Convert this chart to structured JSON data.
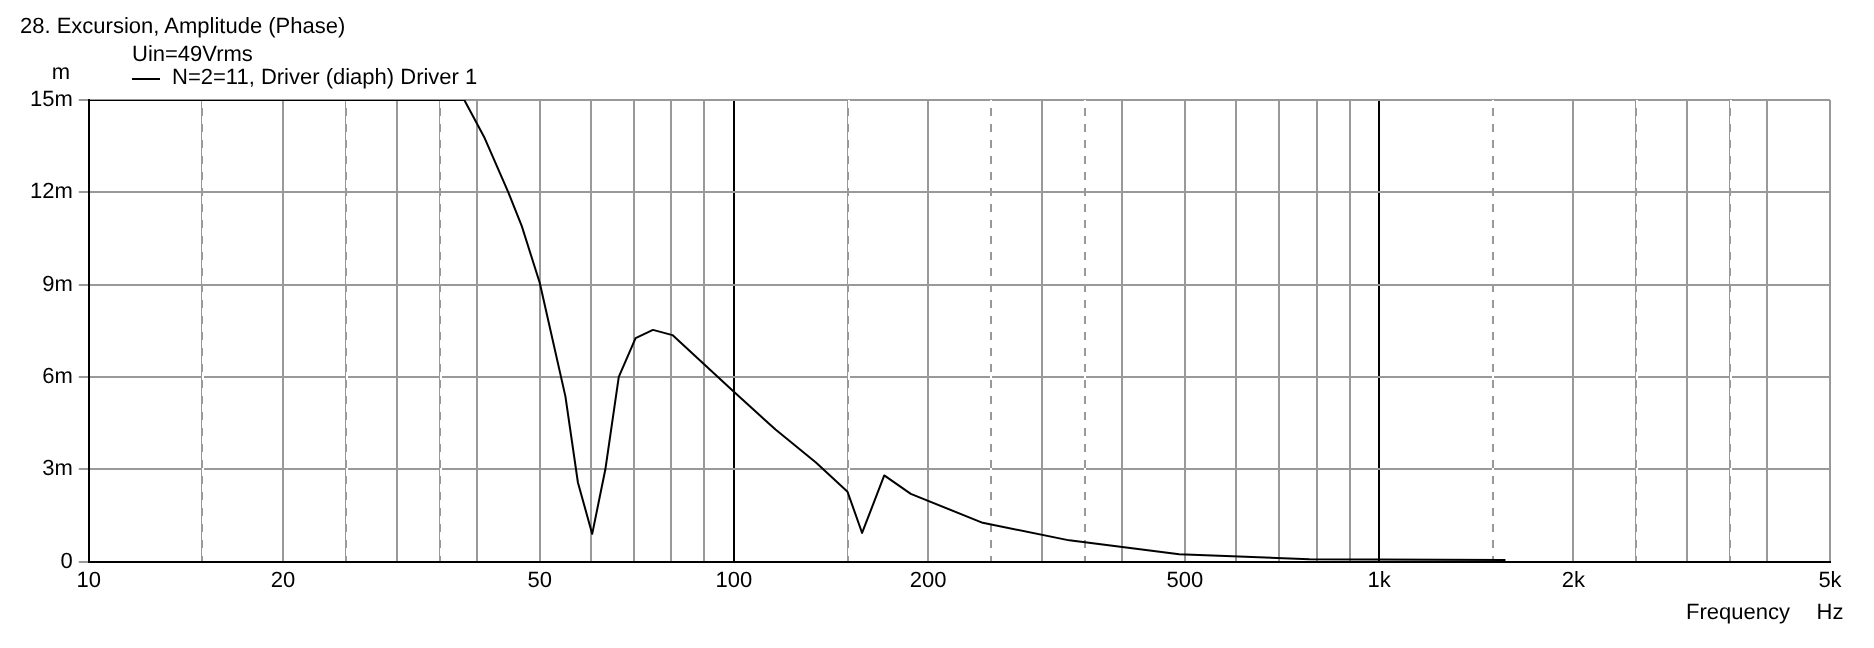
{
  "chart_data": {
    "type": "line",
    "title": "28. Excursion, Amplitude (Phase)",
    "subtitle": "Uin=49Vrms",
    "xlabel": "Frequency",
    "ylabel": "m",
    "annotations": [
      "Hz"
    ],
    "x": [
      10,
      20,
      30,
      38.2,
      41,
      44.7,
      46.9,
      50,
      54.8,
      57.3,
      60.3,
      63.2,
      66.3,
      70.4,
      74.9,
      80.3,
      89.9,
      99.5,
      116,
      134,
      150,
      158,
      171,
      188,
      243,
      331,
      490,
      780,
      1570
    ],
    "series": [
      {
        "name": "N=2=11, Driver (diaph) Driver 1",
        "color": "#000000",
        "values": [
          15,
          15,
          15,
          15,
          13.8,
          12.0,
          10.9,
          9.06,
          5.37,
          2.57,
          0.9,
          3.0,
          6.0,
          7.26,
          7.53,
          7.36,
          6.41,
          5.56,
          4.29,
          3.22,
          2.27,
          0.93,
          2.8,
          2.2,
          1.26,
          0.69,
          0.24,
          0.08,
          0.05
        ]
      }
    ],
    "log": "x",
    "xlim": [
      10,
      5000
    ],
    "xticks": [
      10,
      {
        "value": 15,
        "label": null
      },
      20,
      {
        "value": 25,
        "label": null
      },
      {
        "value": 30,
        "label": null
      },
      {
        "value": 35,
        "label": null
      },
      {
        "value": 40,
        "label": null
      },
      50,
      {
        "value": 60,
        "label": null
      },
      {
        "value": 70,
        "label": null
      },
      {
        "value": 80,
        "label": null
      },
      {
        "value": 90,
        "label": null
      },
      100,
      {
        "value": 150,
        "label": null
      },
      200,
      {
        "value": 250,
        "label": null
      },
      {
        "value": 300,
        "label": null
      },
      {
        "value": 350,
        "label": null
      },
      {
        "value": 400,
        "label": null
      },
      500,
      {
        "value": 600,
        "label": null
      },
      {
        "value": 700,
        "label": null
      },
      {
        "value": 800,
        "label": null
      },
      {
        "value": 900,
        "label": null
      },
      {
        "value": 1000,
        "label": "1k"
      },
      {
        "value": 1500,
        "label": null
      },
      {
        "value": 2000,
        "label": "2k"
      },
      {
        "value": 2500,
        "label": null
      },
      {
        "value": 3000,
        "label": null
      },
      {
        "value": 3500,
        "label": null
      },
      {
        "value": 4000,
        "label": null
      },
      {
        "value": 5000,
        "label": "5k"
      }
    ],
    "ylim": [
      0,
      15
    ],
    "yticks": [
      0,
      {
        "value": 3,
        "label": "3m"
      },
      {
        "value": 6,
        "label": "6m"
      },
      {
        "value": 9,
        "label": "9m"
      },
      {
        "value": 12,
        "label": "12m"
      },
      {
        "value": 15,
        "label": "15m"
      }
    ],
    "grid": true,
    "legend": "top left",
    "marker": "none",
    "line_style": "solid"
  }
}
